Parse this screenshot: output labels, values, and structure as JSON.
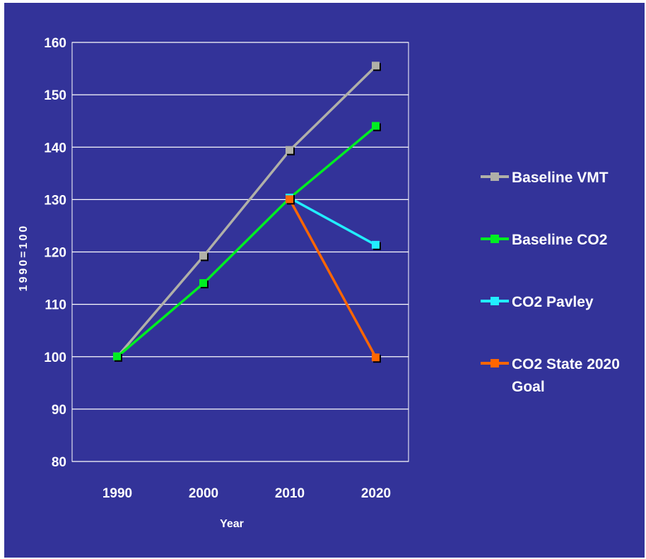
{
  "chart_data": {
    "type": "line",
    "title": "",
    "xlabel": "Year",
    "ylabel": "1990=100",
    "categories": [
      "1990",
      "2000",
      "2010",
      "2020"
    ],
    "ylim": [
      80,
      160
    ],
    "yticks": [
      80,
      90,
      100,
      110,
      120,
      130,
      140,
      150,
      160
    ],
    "grid": true,
    "legend_position": "right",
    "series": [
      {
        "name": "Baseline VMT",
        "color": "#b0b0a8",
        "values": [
          100,
          119.2,
          139.4,
          155.5
        ]
      },
      {
        "name": "Baseline CO2",
        "color": "#00ee22",
        "values": [
          100,
          114,
          130.3,
          144
        ]
      },
      {
        "name": "CO2 Pavley",
        "color": "#22eeff",
        "values": [
          null,
          null,
          130.3,
          121.3
        ]
      },
      {
        "name": "CO2 State 2020 Goal",
        "color": "#ff6600",
        "values": [
          null,
          null,
          130,
          99.8
        ]
      }
    ]
  }
}
